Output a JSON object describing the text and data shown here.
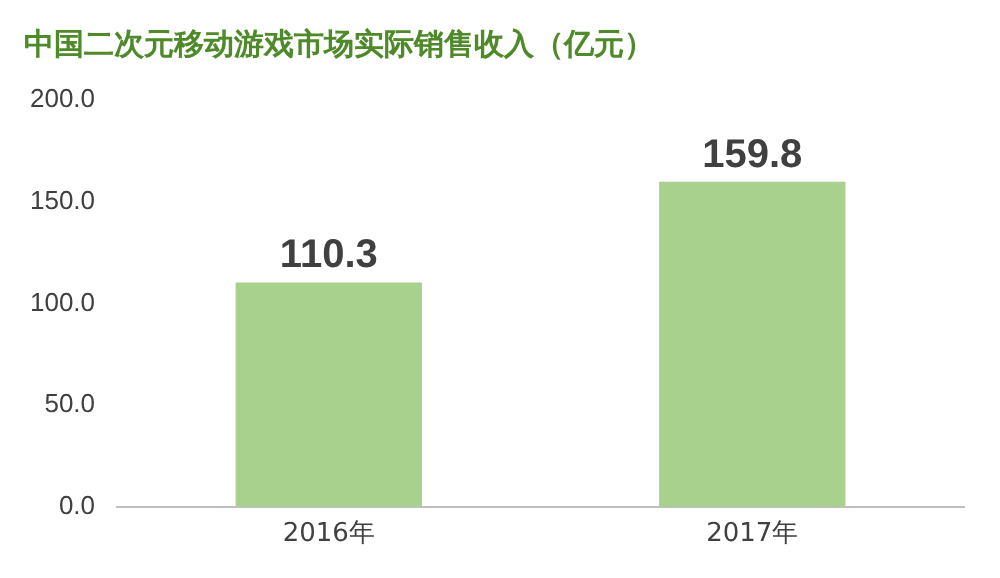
{
  "chart_data": {
    "type": "bar",
    "title": "中国二次元移动游戏市场实际销售收入（亿元）",
    "categories": [
      "2016年",
      "2017年"
    ],
    "values": [
      110.3,
      159.8
    ],
    "color": "#a9d18e",
    "ylim": [
      0,
      200
    ],
    "yticks": [
      {
        "value": 0,
        "label": "0.0"
      },
      {
        "value": 50,
        "label": "50.0"
      },
      {
        "value": 100,
        "label": "100.0"
      },
      {
        "value": 150,
        "label": "150.0"
      },
      {
        "value": 200,
        "label": "200.0"
      }
    ],
    "grid": false,
    "legend": false,
    "data_labels": true
  }
}
